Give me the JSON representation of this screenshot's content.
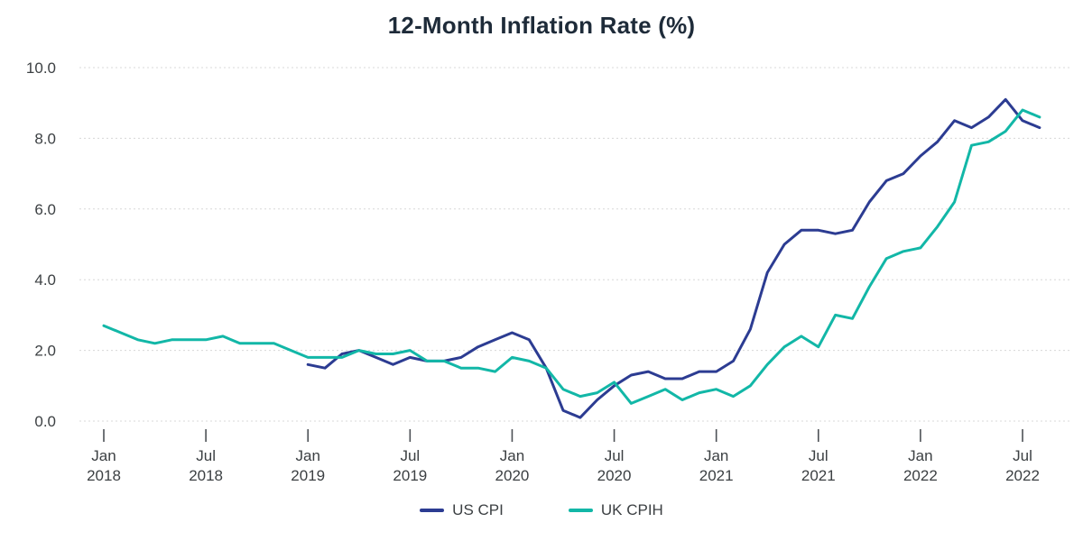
{
  "chart_data": {
    "type": "line",
    "title": "12-Month Inflation Rate (%)",
    "xlabel": "",
    "ylabel": "",
    "ylim": [
      0,
      10
    ],
    "y_ticks": [
      0,
      2,
      4,
      6,
      8,
      10
    ],
    "y_tick_labels": [
      "0.0",
      "2.0",
      "4.0",
      "6.0",
      "8.0",
      "10.0"
    ],
    "grid": "horizontal-dashed",
    "legend_position": "bottom-center",
    "x": [
      "Jan 2018",
      "Feb 2018",
      "Mar 2018",
      "Apr 2018",
      "May 2018",
      "Jun 2018",
      "Jul 2018",
      "Aug 2018",
      "Sep 2018",
      "Oct 2018",
      "Nov 2018",
      "Dec 2018",
      "Jan 2019",
      "Feb 2019",
      "Mar 2019",
      "Apr 2019",
      "May 2019",
      "Jun 2019",
      "Jul 2019",
      "Aug 2019",
      "Sep 2019",
      "Oct 2019",
      "Nov 2019",
      "Dec 2019",
      "Jan 2020",
      "Feb 2020",
      "Mar 2020",
      "Apr 2020",
      "May 2020",
      "Jun 2020",
      "Jul 2020",
      "Aug 2020",
      "Sep 2020",
      "Oct 2020",
      "Nov 2020",
      "Dec 2020",
      "Jan 2021",
      "Feb 2021",
      "Mar 2021",
      "Apr 2021",
      "May 2021",
      "Jun 2021",
      "Jul 2021",
      "Aug 2021",
      "Sep 2021",
      "Oct 2021",
      "Nov 2021",
      "Dec 2021",
      "Jan 2022",
      "Feb 2022",
      "Mar 2022",
      "Apr 2022",
      "May 2022",
      "Jun 2022",
      "Jul 2022",
      "Aug 2022"
    ],
    "x_tick_labels": [
      {
        "month": "Jan",
        "year": "2018"
      },
      {
        "month": "Jul",
        "year": "2018"
      },
      {
        "month": "Jan",
        "year": "2019"
      },
      {
        "month": "Jul",
        "year": "2019"
      },
      {
        "month": "Jan",
        "year": "2020"
      },
      {
        "month": "Jul",
        "year": "2020"
      },
      {
        "month": "Jan",
        "year": "2021"
      },
      {
        "month": "Jul",
        "year": "2021"
      },
      {
        "month": "Jan",
        "year": "2022"
      },
      {
        "month": "Jul",
        "year": "2022"
      }
    ],
    "series": [
      {
        "name": "US CPI",
        "color": "#2c3c92",
        "values": [
          null,
          null,
          null,
          null,
          null,
          null,
          null,
          null,
          null,
          null,
          null,
          null,
          1.6,
          1.5,
          1.9,
          2.0,
          1.8,
          1.6,
          1.8,
          1.7,
          1.7,
          1.8,
          2.1,
          2.3,
          2.5,
          2.3,
          1.5,
          0.3,
          0.1,
          0.6,
          1.0,
          1.3,
          1.4,
          1.2,
          1.2,
          1.4,
          1.4,
          1.7,
          2.6,
          4.2,
          5.0,
          5.4,
          5.4,
          5.3,
          5.4,
          6.2,
          6.8,
          7.0,
          7.5,
          7.9,
          8.5,
          8.3,
          8.6,
          9.1,
          8.5,
          8.3
        ]
      },
      {
        "name": "UK CPIH",
        "color": "#12b7a7",
        "values": [
          2.7,
          2.5,
          2.3,
          2.2,
          2.3,
          2.3,
          2.3,
          2.4,
          2.2,
          2.2,
          2.2,
          2.0,
          1.8,
          1.8,
          1.8,
          2.0,
          1.9,
          1.9,
          2.0,
          1.7,
          1.7,
          1.5,
          1.5,
          1.4,
          1.8,
          1.7,
          1.5,
          0.9,
          0.7,
          0.8,
          1.1,
          0.5,
          0.7,
          0.9,
          0.6,
          0.8,
          0.9,
          0.7,
          1.0,
          1.6,
          2.1,
          2.4,
          2.1,
          3.0,
          2.9,
          3.8,
          4.6,
          4.8,
          4.9,
          5.5,
          6.2,
          7.8,
          7.9,
          8.2,
          8.8,
          8.6
        ]
      }
    ]
  }
}
